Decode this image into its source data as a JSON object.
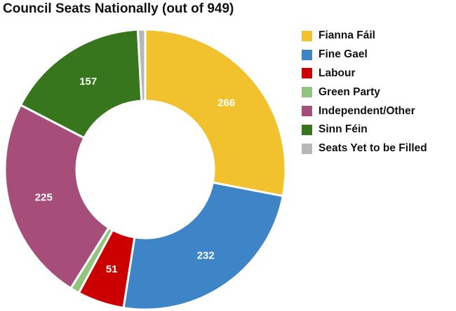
{
  "chart_data": {
    "type": "pie",
    "title": "Council Seats Nationally (out of 949)",
    "total": 949,
    "slices": [
      {
        "label": "Fianna Fáil",
        "value": 266,
        "color": "#F2C12E",
        "data_label": "266"
      },
      {
        "label": "Fine Gael",
        "value": 232,
        "color": "#3D85C6",
        "data_label": "232"
      },
      {
        "label": "Labour",
        "value": 51,
        "color": "#CC0000",
        "data_label": "51"
      },
      {
        "label": "Green Party",
        "value": 10,
        "color": "#93C47D",
        "data_label": ""
      },
      {
        "label": "Independent/Other",
        "value": 225,
        "color": "#A64D79",
        "data_label": "225"
      },
      {
        "label": "Sinn Féin",
        "value": 157,
        "color": "#38761D",
        "data_label": "157"
      },
      {
        "label": "Seats Yet to be Filled",
        "value": 8,
        "color": "#B7B7B7",
        "data_label": ""
      }
    ],
    "legend_position": "right",
    "hole": true
  }
}
